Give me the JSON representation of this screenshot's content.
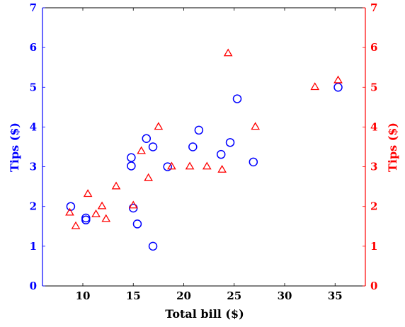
{
  "chart_data": {
    "type": "scatter",
    "title": "",
    "xlabel": "Total bill ($)",
    "ylabel_left": "Tips ($)",
    "ylabel_right": "Tips ($)",
    "xlim": [
      6,
      38
    ],
    "ylim": [
      0,
      7
    ],
    "xticks": [
      "10",
      "15",
      "20",
      "25",
      "30",
      "35"
    ],
    "yticks": [
      "0",
      "1",
      "2",
      "3",
      "4",
      "5",
      "6",
      "7"
    ],
    "grid": false,
    "colors": {
      "left": "#0000ff",
      "right": "#ff0000"
    },
    "series": [
      {
        "axis": "left",
        "marker": "circle",
        "color": "#0000ff",
        "points": [
          [
            8.8,
            2.0
          ],
          [
            10.3,
            1.71
          ],
          [
            10.3,
            1.66
          ],
          [
            14.8,
            3.23
          ],
          [
            14.8,
            3.02
          ],
          [
            15.0,
            1.96
          ],
          [
            15.4,
            1.56
          ],
          [
            16.3,
            3.71
          ],
          [
            16.95,
            3.5
          ],
          [
            16.95,
            1.0
          ],
          [
            18.4,
            3.0
          ],
          [
            20.9,
            3.5
          ],
          [
            21.5,
            3.92
          ],
          [
            23.7,
            3.31
          ],
          [
            24.6,
            3.61
          ],
          [
            25.3,
            4.71
          ],
          [
            26.9,
            3.12
          ],
          [
            35.3,
            5.0
          ]
        ]
      },
      {
        "axis": "right",
        "marker": "triangle",
        "color": "#ff0000",
        "points": [
          [
            8.7,
            1.84
          ],
          [
            9.3,
            1.5
          ],
          [
            10.5,
            2.31
          ],
          [
            11.3,
            1.8
          ],
          [
            11.9,
            2.0
          ],
          [
            12.3,
            1.68
          ],
          [
            13.3,
            2.5
          ],
          [
            15.0,
            2.02
          ],
          [
            15.8,
            3.39
          ],
          [
            16.5,
            2.71
          ],
          [
            17.5,
            4.0
          ],
          [
            18.8,
            3.0
          ],
          [
            20.6,
            3.0
          ],
          [
            22.3,
            3.0
          ],
          [
            23.8,
            2.92
          ],
          [
            24.4,
            5.85
          ],
          [
            27.1,
            4.0
          ],
          [
            33.0,
            5.0
          ],
          [
            35.3,
            5.17
          ]
        ]
      }
    ]
  }
}
